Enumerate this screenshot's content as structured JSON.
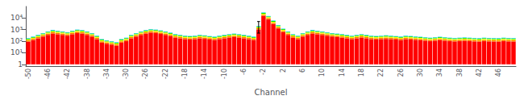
{
  "chart_data": {
    "type": "bar",
    "stacked": true,
    "xlabel": "Channel",
    "log": "y",
    "grid": false,
    "ylim": [
      0.7,
      100000
    ],
    "yticks": [
      1,
      {
        "value": 10,
        "label": "10¹"
      },
      {
        "value": 100,
        "label": "10²"
      },
      {
        "value": 1000,
        "label": "10³"
      },
      {
        "value": 10000,
        "label": "10⁴"
      }
    ],
    "categories": [
      "-50",
      null,
      null,
      null,
      "-46",
      null,
      null,
      null,
      "-42",
      null,
      null,
      null,
      "-38",
      null,
      null,
      null,
      "-34",
      null,
      null,
      null,
      "-30",
      null,
      null,
      null,
      "-26",
      null,
      null,
      null,
      "-22",
      null,
      null,
      null,
      "-18",
      null,
      null,
      null,
      "-14",
      null,
      null,
      null,
      "-10",
      null,
      null,
      null,
      "-6",
      null,
      null,
      null,
      "-2",
      null,
      null,
      null,
      "2",
      null,
      null,
      null,
      "6",
      null,
      null,
      null,
      "10",
      null,
      null,
      null,
      "14",
      null,
      null,
      null,
      "18",
      null,
      null,
      null,
      "22",
      null,
      null,
      null,
      "26",
      null,
      null,
      null,
      "30",
      null,
      null,
      null,
      "34",
      null,
      null,
      null,
      "38",
      null,
      null,
      null,
      "42",
      null,
      null,
      null,
      "46",
      null,
      null,
      null
    ],
    "series": [
      {
        "color": "#ff0000",
        "values": [
          90,
          125,
          175,
          250,
          350,
          450,
          400,
          350,
          300,
          400,
          500,
          450,
          350,
          250,
          150,
          75,
          60,
          50,
          40,
          75,
          100,
          175,
          250,
          350,
          450,
          550,
          500,
          425,
          350,
          275,
          200,
          175,
          150,
          140,
          150,
          175,
          160,
          140,
          125,
          150,
          175,
          200,
          225,
          200,
          175,
          150,
          125,
          1000,
          15000,
          7500,
          3000,
          1250,
          600,
          350,
          200,
          150,
          250,
          350,
          450,
          400,
          350,
          300,
          250,
          225,
          200,
          175,
          150,
          175,
          200,
          175,
          150,
          140,
          150,
          160,
          150,
          140,
          125,
          150,
          140,
          130,
          120,
          110,
          100,
          110,
          120,
          110,
          100,
          95,
          100,
          105,
          100,
          95,
          90,
          100,
          95,
          92.5,
          90,
          100,
          95,
          92.5
        ]
      },
      {
        "color": "#ff7700",
        "values": [
          27,
          37.5,
          52.5,
          75,
          105,
          135,
          120,
          105,
          90,
          120,
          150,
          135,
          105,
          75,
          45,
          22.5,
          18,
          15,
          12,
          22.5,
          30,
          52.5,
          75,
          105,
          135,
          165,
          150,
          127.5,
          105,
          82.5,
          60,
          52.5,
          45,
          42,
          45,
          52.5,
          48,
          42,
          37.5,
          45,
          52.5,
          60,
          67.5,
          60,
          52.5,
          45,
          37.5,
          300,
          4500,
          2250,
          900,
          375,
          180,
          105,
          60,
          45,
          75,
          105,
          135,
          120,
          105,
          90,
          75,
          67.5,
          60,
          52.5,
          45,
          52.5,
          60,
          52.5,
          45,
          42,
          45,
          48,
          45,
          42,
          37.5,
          45,
          42,
          39,
          36,
          33,
          30,
          33,
          36,
          33,
          30,
          28.5,
          30,
          31.5,
          30,
          28.5,
          27,
          30,
          28.5,
          27.75,
          27,
          30,
          28.5,
          27.75
        ]
      },
      {
        "color": "#ffff00",
        "values": [
          27,
          37.5,
          52.5,
          75,
          105,
          135,
          120,
          105,
          90,
          120,
          150,
          135,
          105,
          75,
          45,
          22.5,
          18,
          15,
          12,
          22.5,
          30,
          52.5,
          75,
          105,
          135,
          165,
          150,
          127.5,
          105,
          82.5,
          60,
          52.5,
          45,
          42,
          45,
          52.5,
          48,
          42,
          37.5,
          45,
          52.5,
          60,
          67.5,
          60,
          52.5,
          45,
          37.5,
          300,
          4500,
          2250,
          900,
          375,
          180,
          105,
          60,
          45,
          75,
          105,
          135,
          120,
          105,
          90,
          75,
          67.5,
          60,
          52.5,
          45,
          52.5,
          60,
          52.5,
          45,
          42,
          45,
          48,
          45,
          42,
          37.5,
          45,
          42,
          39,
          36,
          33,
          30,
          33,
          36,
          33,
          30,
          28.5,
          30,
          31.5,
          30,
          28.5,
          27,
          30,
          28.5,
          27.75,
          27,
          30,
          28.5,
          27.75
        ]
      },
      {
        "color": "#00dd00",
        "values": [
          21.6,
          30,
          42,
          60,
          84,
          108,
          96,
          84,
          72,
          96,
          120,
          108,
          84,
          60,
          36,
          18,
          14.4,
          12,
          9.6,
          18,
          24,
          42,
          60,
          84,
          108,
          132,
          120,
          102,
          84,
          66,
          48,
          42,
          36,
          33.6,
          36,
          42,
          38.4,
          33.6,
          30,
          36,
          42,
          48,
          54,
          48,
          42,
          36,
          30,
          240,
          3600,
          1800,
          720,
          300,
          144,
          84,
          48,
          36,
          60,
          84,
          108,
          96,
          84,
          72,
          60,
          54,
          48,
          42,
          36,
          42,
          48,
          42,
          36,
          33.6,
          36,
          38.4,
          36,
          33.6,
          30,
          36,
          33.6,
          31.2,
          28.8,
          26.4,
          24,
          26.4,
          28.8,
          26.4,
          24,
          22.8,
          24,
          25.2,
          24,
          22.8,
          21.6,
          24,
          22.8,
          22.2,
          21.6,
          24,
          22.8,
          22.2
        ]
      },
      {
        "color": "#00ccff",
        "values": [
          14.4,
          20,
          28,
          40,
          56,
          72,
          64,
          56,
          48,
          64,
          80,
          72,
          56,
          40,
          24,
          12,
          9.6,
          8,
          6.4,
          12,
          16,
          28,
          40,
          56,
          72,
          88,
          80,
          68,
          56,
          44,
          32,
          28,
          24,
          22.4,
          24,
          28,
          25.6,
          22.4,
          20,
          24,
          28,
          32,
          36,
          32,
          28,
          24,
          20,
          160,
          2400,
          1200,
          480,
          200,
          96,
          56,
          32,
          24,
          40,
          56,
          72,
          64,
          56,
          48,
          40,
          36,
          32,
          28,
          24,
          28,
          32,
          28,
          24,
          22.4,
          24,
          25.6,
          24,
          22.4,
          20,
          24,
          22.4,
          20.8,
          19.2,
          17.6,
          16,
          17.6,
          19.2,
          17.6,
          16,
          15.2,
          16,
          16.8,
          16,
          15.2,
          14.4,
          16,
          15.2,
          14.8,
          14.4,
          16,
          15.2,
          14.8
        ]
      }
    ],
    "error_bar": {
      "index": 47,
      "value": 2000,
      "low": 1500,
      "high": 3000
    }
  }
}
